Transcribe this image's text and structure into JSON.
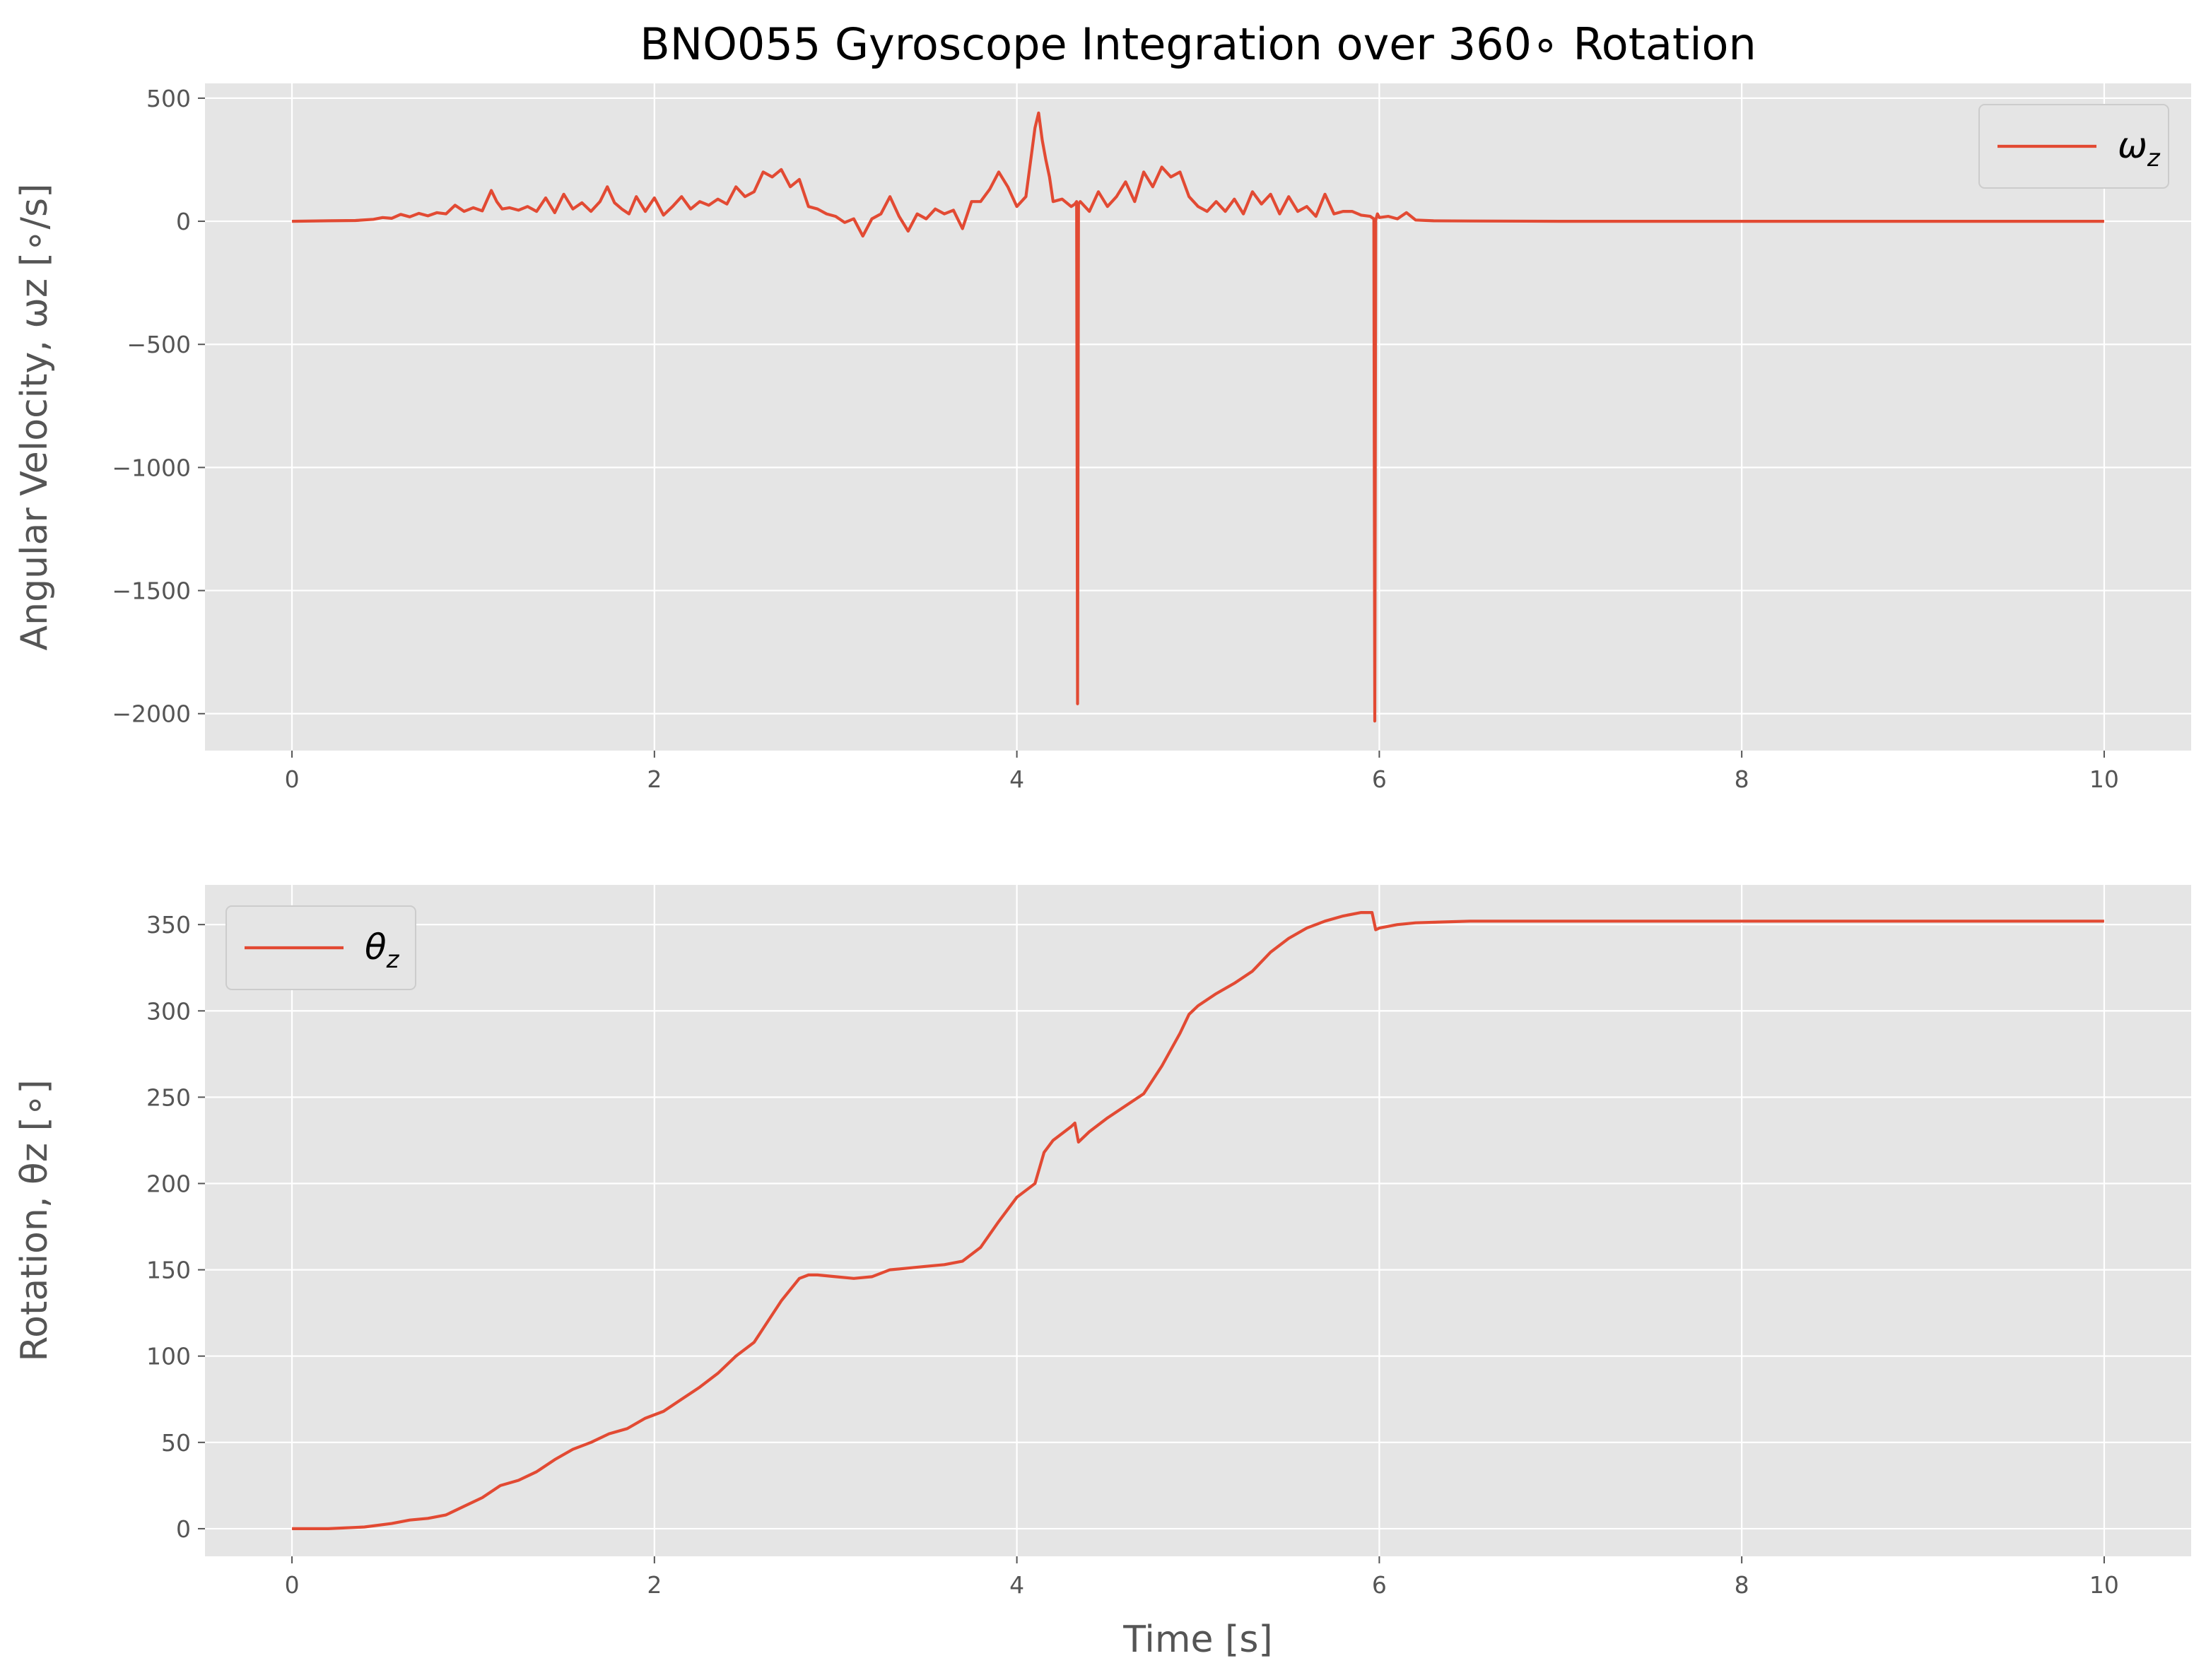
{
  "chart_data": [
    {
      "type": "line",
      "title": "BNO055 Gyroscope Integration over 360∘ Rotation",
      "xlabel": "",
      "ylabel": "Angular Velocity, ωz [∘/s]",
      "xlim": [
        -0.48,
        10.48
      ],
      "ylim": [
        -2150,
        560
      ],
      "xticks": [
        0,
        2,
        4,
        6,
        8,
        10
      ],
      "yticks": [
        500,
        0,
        -500,
        -1000,
        -1500,
        -2000
      ],
      "grid": true,
      "legend": {
        "position": "top-right",
        "symbol": "ω",
        "subscript": "z"
      },
      "series": [
        {
          "color": "#e24a33",
          "x": [
            0,
            0.2,
            0.35,
            0.45,
            0.5,
            0.55,
            0.6,
            0.65,
            0.7,
            0.75,
            0.8,
            0.85,
            0.9,
            0.95,
            1.0,
            1.05,
            1.1,
            1.13,
            1.16,
            1.2,
            1.25,
            1.3,
            1.35,
            1.4,
            1.45,
            1.5,
            1.55,
            1.6,
            1.65,
            1.7,
            1.74,
            1.78,
            1.82,
            1.86,
            1.9,
            1.95,
            2.0,
            2.05,
            2.1,
            2.15,
            2.2,
            2.25,
            2.3,
            2.35,
            2.4,
            2.45,
            2.5,
            2.55,
            2.6,
            2.65,
            2.7,
            2.75,
            2.8,
            2.85,
            2.9,
            2.95,
            3.0,
            3.05,
            3.1,
            3.15,
            3.2,
            3.25,
            3.3,
            3.35,
            3.4,
            3.45,
            3.5,
            3.55,
            3.6,
            3.65,
            3.7,
            3.75,
            3.8,
            3.85,
            3.9,
            3.95,
            4.0,
            4.05,
            4.1,
            4.12,
            4.14,
            4.16,
            4.18,
            4.2,
            4.25,
            4.3,
            4.32,
            4.33,
            4.335,
            4.34,
            4.35,
            4.4,
            4.45,
            4.5,
            4.55,
            4.6,
            4.65,
            4.7,
            4.75,
            4.8,
            4.85,
            4.9,
            4.95,
            5.0,
            5.05,
            5.1,
            5.15,
            5.2,
            5.25,
            5.3,
            5.35,
            5.4,
            5.45,
            5.5,
            5.55,
            5.6,
            5.65,
            5.7,
            5.75,
            5.8,
            5.85,
            5.9,
            5.95,
            5.97,
            5.975,
            5.98,
            5.99,
            6.0,
            6.05,
            6.1,
            6.15,
            6.2,
            6.3,
            6.5,
            7.0,
            8.0,
            9.0,
            10.0
          ],
          "y": [
            0,
            2,
            3,
            8,
            15,
            12,
            28,
            18,
            32,
            22,
            35,
            30,
            65,
            40,
            55,
            42,
            125,
            80,
            50,
            55,
            45,
            60,
            40,
            95,
            35,
            110,
            50,
            75,
            40,
            80,
            140,
            75,
            50,
            30,
            100,
            40,
            95,
            25,
            60,
            100,
            50,
            80,
            65,
            90,
            70,
            140,
            100,
            120,
            200,
            180,
            210,
            140,
            170,
            60,
            50,
            30,
            20,
            -5,
            10,
            -60,
            10,
            30,
            100,
            20,
            -40,
            30,
            10,
            50,
            30,
            45,
            -30,
            80,
            80,
            130,
            200,
            140,
            60,
            100,
            380,
            440,
            330,
            250,
            180,
            80,
            90,
            60,
            70,
            80,
            -1960,
            70,
            80,
            40,
            120,
            60,
            100,
            160,
            80,
            200,
            140,
            220,
            180,
            200,
            100,
            60,
            40,
            80,
            40,
            90,
            30,
            120,
            70,
            110,
            30,
            100,
            40,
            60,
            20,
            110,
            30,
            40,
            40,
            25,
            20,
            10,
            -2030,
            5,
            30,
            15,
            20,
            10,
            35,
            5,
            2,
            1,
            0,
            0,
            0,
            0
          ]
        }
      ]
    },
    {
      "type": "line",
      "title": "",
      "xlabel": "Time [s]",
      "ylabel": "Rotation, θz [∘]",
      "xlim": [
        -0.48,
        10.48
      ],
      "ylim": [
        -16,
        373
      ],
      "xticks": [
        0,
        2,
        4,
        6,
        8,
        10
      ],
      "yticks": [
        0,
        50,
        100,
        150,
        200,
        250,
        300,
        350
      ],
      "grid": true,
      "legend": {
        "position": "top-left",
        "symbol": "θ",
        "subscript": "z"
      },
      "series": [
        {
          "color": "#e24a33",
          "x": [
            0,
            0.2,
            0.4,
            0.55,
            0.65,
            0.75,
            0.85,
            0.95,
            1.05,
            1.15,
            1.25,
            1.35,
            1.45,
            1.55,
            1.65,
            1.75,
            1.85,
            1.95,
            2.05,
            2.15,
            2.25,
            2.35,
            2.45,
            2.55,
            2.6,
            2.7,
            2.8,
            2.85,
            2.9,
            3.0,
            3.1,
            3.2,
            3.3,
            3.4,
            3.5,
            3.6,
            3.7,
            3.8,
            3.9,
            4.0,
            4.1,
            4.15,
            4.2,
            4.3,
            4.32,
            4.34,
            4.4,
            4.5,
            4.6,
            4.7,
            4.8,
            4.9,
            4.95,
            5.0,
            5.1,
            5.2,
            5.3,
            5.4,
            5.5,
            5.6,
            5.7,
            5.8,
            5.9,
            5.96,
            5.98,
            6.0,
            6.1,
            6.2,
            6.5,
            7.0,
            8.0,
            9.0,
            10.0
          ],
          "y": [
            0,
            0,
            1,
            3,
            5,
            6,
            8,
            13,
            18,
            25,
            28,
            33,
            40,
            46,
            50,
            55,
            58,
            64,
            68,
            75,
            82,
            90,
            100,
            108,
            116,
            132,
            145,
            147,
            147,
            146,
            145,
            146,
            150,
            151,
            152,
            153,
            155,
            163,
            178,
            192,
            200,
            218,
            225,
            233,
            235,
            224,
            230,
            238,
            245,
            252,
            268,
            287,
            298,
            303,
            310,
            316,
            323,
            334,
            342,
            348,
            352,
            355,
            357,
            357,
            347,
            348,
            350,
            351,
            352,
            352,
            352,
            352,
            352
          ]
        }
      ]
    }
  ]
}
